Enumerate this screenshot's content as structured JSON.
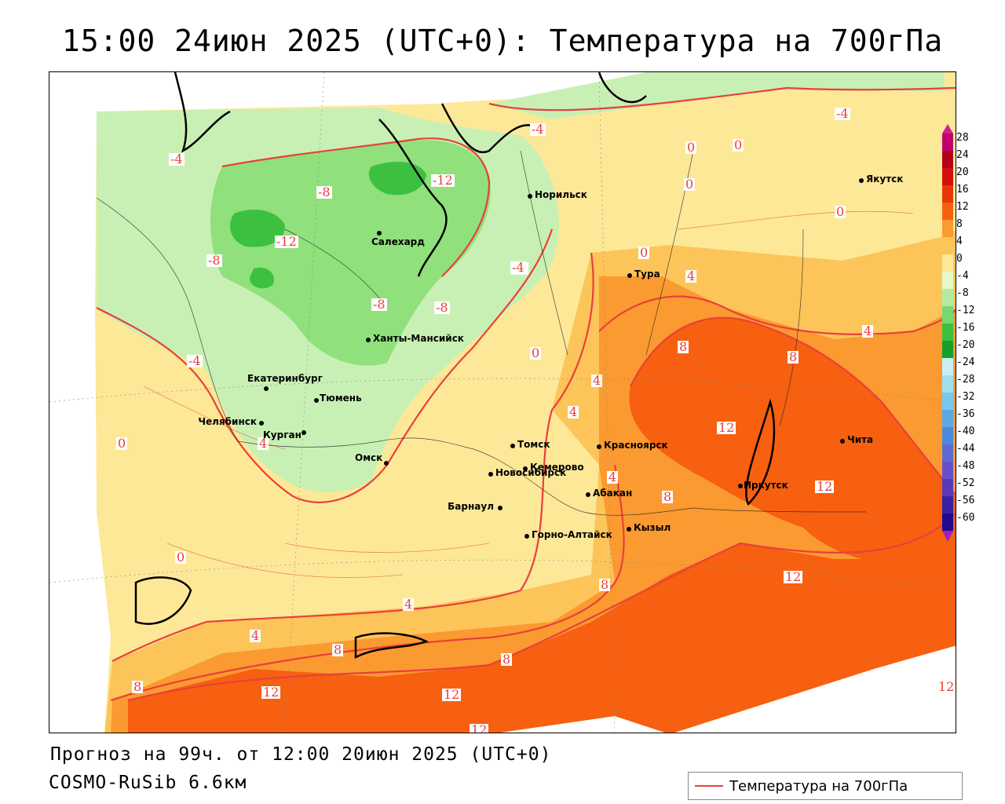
{
  "title": "15:00 24июн 2025 (UTC+0): Температура на 700гПа",
  "forecast_line": "Прогноз на 99ч. от 12:00 20июн 2025 (UTC+0)",
  "model_line": "COSMO-RuSib 6.6км",
  "legend": {
    "label": "Температура на 700гПа",
    "line_color": "#e8403c"
  },
  "colorbar": {
    "labels": [
      "28",
      "24",
      "20",
      "16",
      "12",
      "8",
      "4",
      "0",
      "-4",
      "-8",
      "-12",
      "-16",
      "-20",
      "-24",
      "-28",
      "-32",
      "-36",
      "-40",
      "-44",
      "-48",
      "-52",
      "-56",
      "-60"
    ],
    "colors": [
      "#c2006e",
      "#b4001e",
      "#d4100c",
      "#e83808",
      "#f66010",
      "#fb9a30",
      "#fdc45a",
      "#fde898",
      "#e6f7c8",
      "#b4eaa0",
      "#76d870",
      "#3cc040",
      "#17a028",
      "#c8f0f4",
      "#9ee0f0",
      "#76c8ec",
      "#5aa8e4",
      "#4c88dc",
      "#5e6ad2",
      "#6a50c8",
      "#5a38b8",
      "#3c20a4",
      "#200a90"
    ],
    "top_arrow_color": "#d0208c",
    "bottom_arrow_color": "#a020c0"
  },
  "cities": [
    {
      "name": "Норильск"
    },
    {
      "name": "Якутск"
    },
    {
      "name": "Салехард"
    },
    {
      "name": "Тура"
    },
    {
      "name": "Ханты-Мансийск"
    },
    {
      "name": "Екатеринбург"
    },
    {
      "name": "Тюмень"
    },
    {
      "name": "Челябинск"
    },
    {
      "name": "Курган"
    },
    {
      "name": "Омск"
    },
    {
      "name": "Новосибирск"
    },
    {
      "name": "Томск"
    },
    {
      "name": "Кемерово"
    },
    {
      "name": "Красноярск"
    },
    {
      "name": "Абакан"
    },
    {
      "name": "Барнаул"
    },
    {
      "name": "Горно-Алтайск"
    },
    {
      "name": "Кызыл"
    },
    {
      "name": "Иркутск"
    },
    {
      "name": "Чита"
    }
  ],
  "isotherm_labels": [
    "-4",
    "-4",
    "-4",
    "0",
    "0",
    "0",
    "-12",
    "-8",
    "-8",
    "-12",
    "-8",
    "-8",
    "-8",
    "-4",
    "-4",
    "0",
    "0",
    "4",
    "8",
    "8",
    "4",
    "4",
    "4",
    "12",
    "12",
    "8",
    "8",
    "0",
    "4",
    "0",
    "0",
    "4",
    "4",
    "4",
    "8",
    "8",
    "12",
    "12",
    "12",
    "8",
    "12",
    "12"
  ]
}
